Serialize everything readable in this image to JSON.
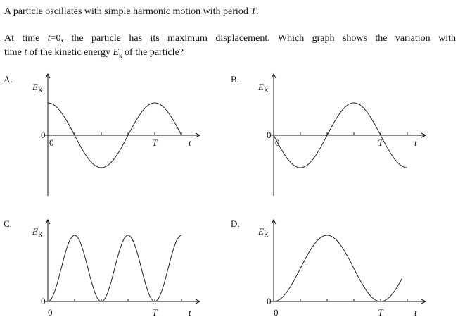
{
  "question": {
    "line1": "A particle oscillates with simple harmonic motion with period",
    "line1_var": "T",
    "line1_end": ".",
    "line2_a": "At time",
    "line2_var": "t",
    "line2_b": "=0, the particle has its maximum displacement.  Which graph shows the variation with",
    "line3_a": "time",
    "line3_var": "t",
    "line3_b": "of the kinetic energy",
    "line3_E": "E",
    "line3_sub": "k",
    "line3_c": "of the particle?"
  },
  "options": [
    {
      "label": "A.",
      "ylabel": "E",
      "ylabel_sub": "k",
      "origin_y": "0",
      "origin_x": "0",
      "period_label": "T",
      "xlabel": "t",
      "curve": "cos(2πt/T)",
      "t_end_periods": 1.25
    },
    {
      "label": "B.",
      "ylabel": "E",
      "ylabel_sub": "k",
      "origin_y": "0",
      "origin_x": "0",
      "period_label": "T",
      "xlabel": "t",
      "curve": "-sin(2πt/T)",
      "t_end_periods": 1.25
    },
    {
      "label": "C.",
      "ylabel": "E",
      "ylabel_sub": "k",
      "origin_y": "0",
      "origin_x": "0",
      "period_label": "T",
      "xlabel": "t",
      "curve": "sin²(2πt/T)",
      "t_end_periods": 1.25
    },
    {
      "label": "D.",
      "ylabel": "E",
      "ylabel_sub": "k",
      "origin_y": "0",
      "origin_x": "0",
      "period_label": "T",
      "xlabel": "t",
      "curve": "sin²(πt/T)",
      "t_end_periods": 1.2
    }
  ]
}
